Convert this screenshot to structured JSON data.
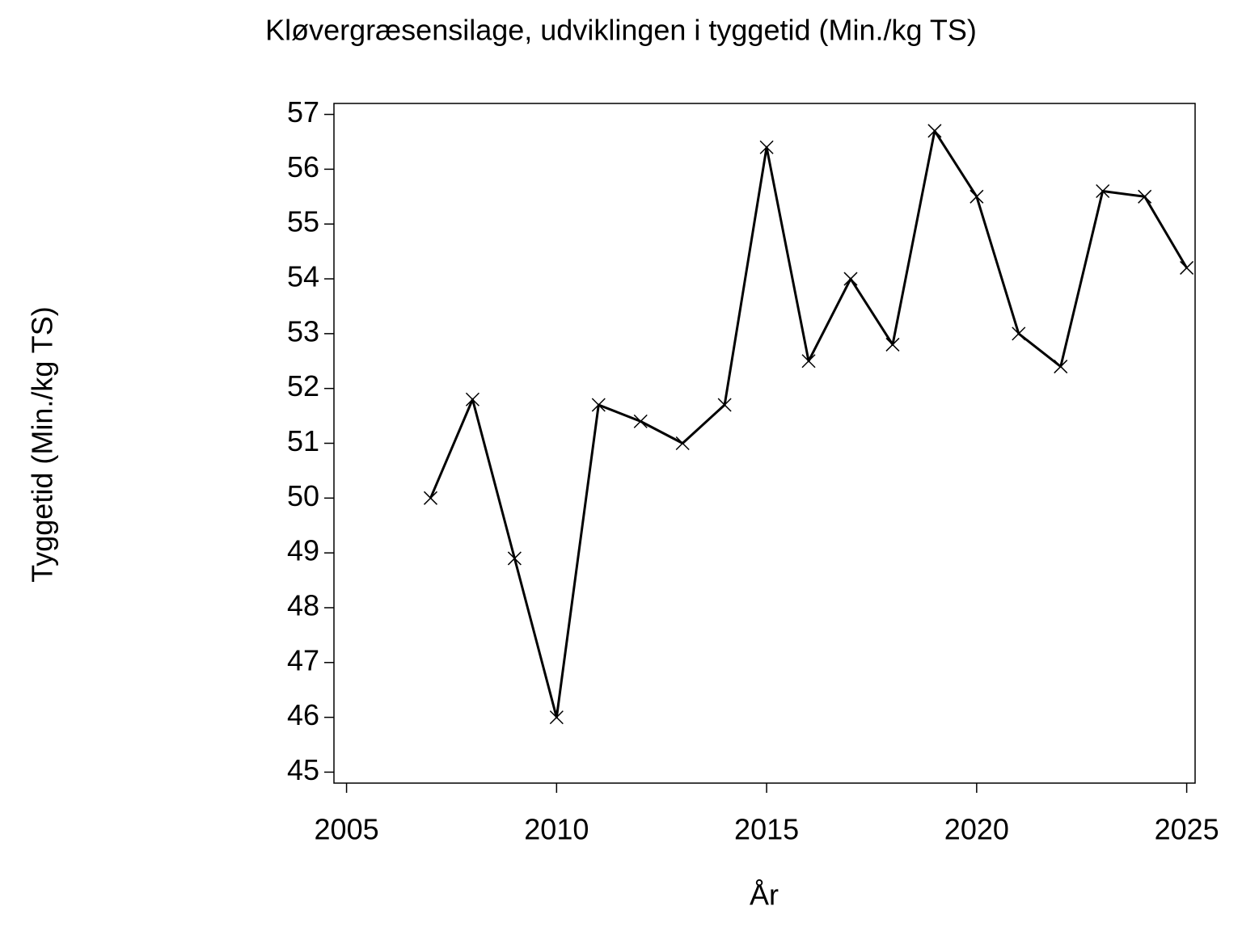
{
  "chart_data": {
    "type": "line",
    "title": "Kløvergræsensilage,  udviklingen  i  tyggetid  (Min./kg  TS)",
    "x_label": "År",
    "y_label": "Tyggetid  (Min./kg  TS)",
    "x": [
      2007,
      2008,
      2009,
      2010,
      2011,
      2012,
      2013,
      2014,
      2015,
      2016,
      2017,
      2018,
      2019,
      2020,
      2021,
      2022,
      2023,
      2024,
      2025
    ],
    "series": [
      {
        "color": "#000000",
        "values": [
          50.0,
          51.8,
          48.9,
          46.0,
          51.7,
          51.4,
          51.0,
          51.7,
          56.4,
          52.5,
          54.0,
          52.8,
          56.7,
          55.5,
          53.0,
          52.4,
          55.6,
          55.5,
          54.2
        ]
      }
    ],
    "xlim": [
      2004.7,
      2025.2
    ],
    "ylim": [
      44.8,
      57.2
    ],
    "xticks": [
      2005,
      2010,
      2015,
      2020,
      2025
    ],
    "yticks": [
      45,
      46,
      47,
      48,
      49,
      50,
      51,
      52,
      53,
      54,
      55,
      56,
      57
    ],
    "marker": "x",
    "grid": false
  }
}
